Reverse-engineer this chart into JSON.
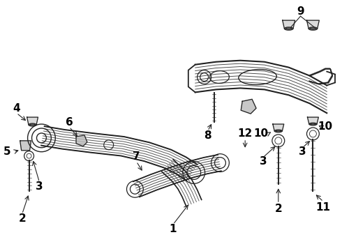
{
  "background_color": "#ffffff",
  "line_color": "#222222",
  "label_color": "#000000",
  "figsize": [
    4.9,
    3.6
  ],
  "dpi": 100,
  "font_size_labels": 11,
  "font_weight": "bold"
}
